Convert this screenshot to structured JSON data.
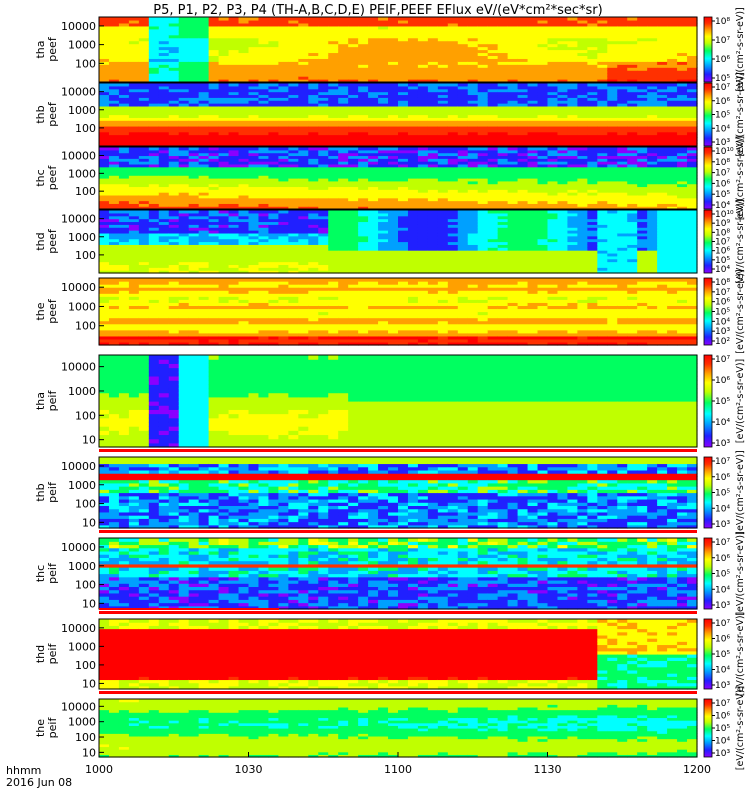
{
  "chart_data": {
    "type": "heatmap",
    "title": "P5, P1, P2, P3, P4 (TH-A,B,C,D,E) PEIF,PEEF EFlux eV/(eV*cm²*sec*sr)",
    "x_time_label": "hhmm",
    "x_date_label": "2016 Jun 08",
    "x_ticks": [
      "1000",
      "1030",
      "1100",
      "1130",
      "1200"
    ],
    "xlim": [
      "10:00",
      "12:00"
    ],
    "y_scale": "log",
    "y_ticks_electron": [
      "100",
      "1000",
      "10000"
    ],
    "y_ticks_ion": [
      "10",
      "100",
      "1000",
      "10000"
    ],
    "ylim_electron": [
      10,
      30000
    ],
    "ylim_ion": [
      5,
      30000
    ],
    "colorbar_label": "[eV/(cm²-s-sr-eV)]",
    "colormap": [
      "#8b00ff",
      "#2020ff",
      "#00a0ff",
      "#00ffff",
      "#00ff60",
      "#c0ff00",
      "#ffff00",
      "#ffa000",
      "#ff3000",
      "#ff0000"
    ],
    "panels": [
      {
        "id": "tha-peef",
        "probe": "tha",
        "product": "peef",
        "cbar": {
          "ticks": [
            "10⁵",
            "10⁶",
            "10⁷",
            "10⁸"
          ],
          "lo": 5,
          "hi": 8
        }
      },
      {
        "id": "thb-peef",
        "probe": "thb",
        "product": "peef",
        "cbar": {
          "ticks": [
            "10³",
            "10⁴",
            "10⁵",
            "10⁶",
            "10⁷"
          ],
          "lo": 3,
          "hi": 7
        }
      },
      {
        "id": "thc-peef",
        "probe": "thc",
        "product": "peef",
        "cbar": {
          "ticks": [
            "10⁴",
            "10⁵",
            "10⁶",
            "10⁷",
            "10⁸",
            "10¹⁰"
          ],
          "lo": 4,
          "hi": 10
        }
      },
      {
        "id": "thd-peef",
        "probe": "thd",
        "product": "peef",
        "cbar": {
          "ticks": [
            "10⁴",
            "10⁵",
            "10⁶",
            "10⁷",
            "10⁸",
            "10⁹",
            "10¹⁰"
          ],
          "lo": 4,
          "hi": 10
        }
      },
      {
        "id": "the-peef",
        "probe": "the",
        "product": "peef",
        "cbar": {
          "ticks": [
            "10²",
            "10³",
            "10⁴",
            "10⁵",
            "10⁶",
            "10⁷",
            "10⁸"
          ],
          "lo": 2,
          "hi": 8
        }
      },
      {
        "id": "tha-peif",
        "probe": "tha",
        "product": "peif",
        "cbar": {
          "ticks": [
            "10³",
            "10⁴",
            "10⁵",
            "10⁶",
            "10⁷"
          ],
          "lo": 3,
          "hi": 7
        }
      },
      {
        "id": "thb-peif",
        "probe": "thb",
        "product": "peif",
        "cbar": {
          "ticks": [
            "10³",
            "10⁴",
            "10⁵",
            "10⁶",
            "10⁷"
          ],
          "lo": 3,
          "hi": 7
        }
      },
      {
        "id": "thc-peif",
        "probe": "thc",
        "product": "peif",
        "cbar": {
          "ticks": [
            "10³",
            "10⁴",
            "10⁵",
            "10⁶",
            "10⁷"
          ],
          "lo": 3,
          "hi": 7
        }
      },
      {
        "id": "thd-peif",
        "probe": "thd",
        "product": "peif",
        "cbar": {
          "ticks": [
            "10³",
            "10⁴",
            "10⁵",
            "10⁶",
            "10⁷"
          ],
          "lo": 3,
          "hi": 7
        }
      },
      {
        "id": "the-peif",
        "probe": "the",
        "product": "peif",
        "cbar": {
          "ticks": [
            "10³",
            "10⁴",
            "10⁵",
            "10⁶",
            "10⁷"
          ],
          "lo": 3,
          "hi": 7
        }
      }
    ]
  }
}
